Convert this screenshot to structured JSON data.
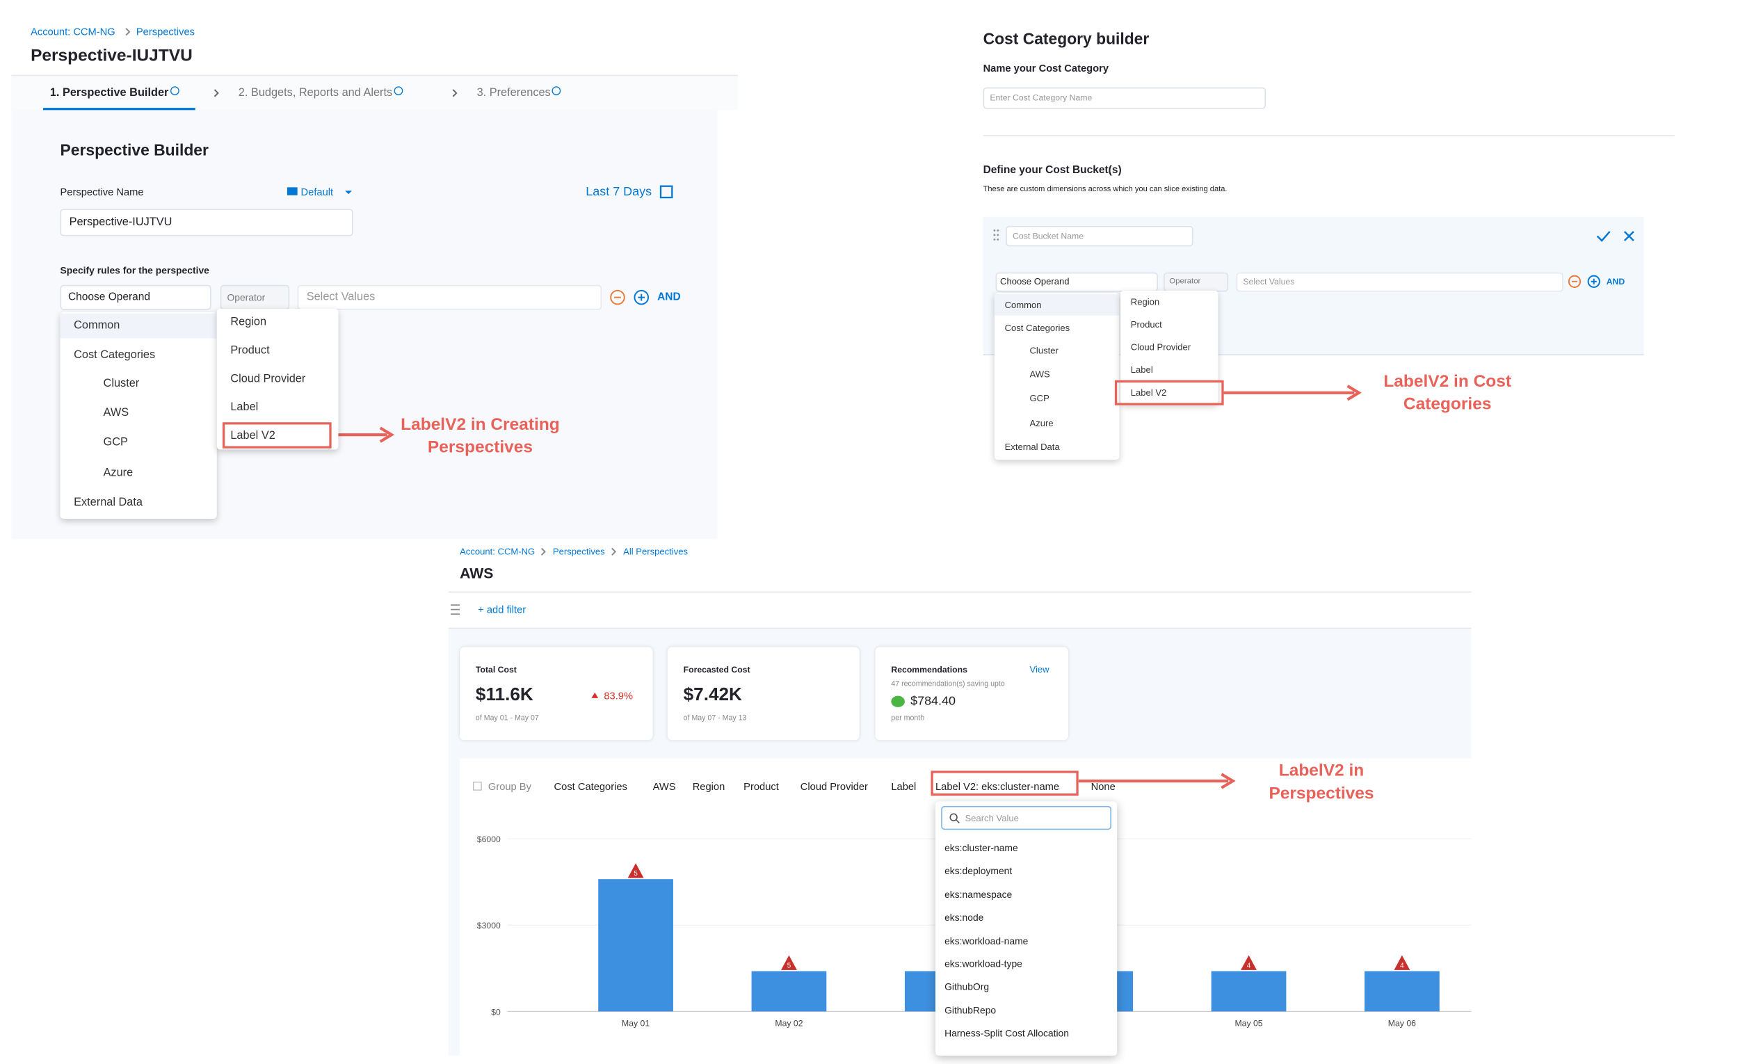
{
  "perspective_builder": {
    "breadcrumb": [
      "Account: CCM-NG",
      "Perspectives"
    ],
    "title": "Perspective-IUJTVU",
    "steps": [
      "1. Perspective Builder",
      "2. Budgets, Reports and Alerts",
      "3. Preferences"
    ],
    "heading": "Perspective Builder",
    "name_label": "Perspective Name",
    "folder": "Default",
    "time_range": "Last 7 Days",
    "name_value": "Perspective-IUJTVU",
    "rules_label": "Specify rules for the perspective",
    "operand": "Choose Operand",
    "operator": "Operator",
    "values_placeholder": "Select Values",
    "and": "AND",
    "menu": [
      "Common",
      "Cost Categories",
      "Cluster",
      "AWS",
      "GCP",
      "Azure",
      "External Data"
    ],
    "submenu": [
      "Region",
      "Product",
      "Cloud Provider",
      "Label",
      "Label V2"
    ],
    "annotation": [
      "LabelV2 in Creating",
      "Perspectives"
    ]
  },
  "cost_category_builder": {
    "title": "Cost Category builder",
    "name_label": "Name your Cost Category",
    "name_placeholder": "Enter Cost Category Name",
    "buckets_heading": "Define your Cost Bucket(s)",
    "buckets_description": "These are custom dimensions across which you can slice existing data.",
    "bucket_placeholder": "Cost Bucket Name",
    "operand": "Choose Operand",
    "operator": "Operator",
    "values_placeholder": "Select Values",
    "and": "AND",
    "menu": [
      "Common",
      "Cost Categories",
      "Cluster",
      "AWS",
      "GCP",
      "Azure",
      "External Data"
    ],
    "submenu": [
      "Region",
      "Product",
      "Cloud Provider",
      "Label",
      "Label V2"
    ],
    "annotation": [
      "LabelV2 in Cost",
      "Categories"
    ]
  },
  "perspective_view": {
    "breadcrumb": [
      "Account: CCM-NG",
      "Perspectives",
      "All Perspectives"
    ],
    "title": "AWS",
    "add_filter": "+ add filter",
    "total_cost": {
      "label": "Total Cost",
      "value": "$11.6K",
      "change": "83.9%",
      "period": "of May 01 - May 07"
    },
    "forecasted_cost": {
      "label": "Forecasted Cost",
      "value": "$7.42K",
      "period": "of May 07 - May 13"
    },
    "recommendations": {
      "label": "Recommendations",
      "link": "View",
      "description": "47 recommendation(s) saving upto",
      "value": "$784.40",
      "period": "per month"
    },
    "group_by": {
      "label": "Group By",
      "options": [
        "Cost Categories",
        "AWS",
        "Region",
        "Product",
        "Cloud Provider",
        "Label",
        "Label V2: eks:cluster-name",
        "None"
      ]
    },
    "dropdown": {
      "search_placeholder": "Search Value",
      "items": [
        "eks:cluster-name",
        "eks:deployment",
        "eks:namespace",
        "eks:node",
        "eks:workload-name",
        "eks:workload-type",
        "GithubOrg",
        "GithubRepo",
        "Harness-Split Cost Allocation"
      ]
    },
    "annotation": [
      "LabelV2 in",
      "Perspectives"
    ],
    "chart": {
      "type": "bar",
      "categories": [
        "May 01",
        "May 02",
        null,
        null,
        "May 05",
        "May 06"
      ],
      "values": [
        4600,
        1400,
        1400,
        1400,
        1400,
        1400
      ],
      "anomaly_counts": [
        5,
        5,
        null,
        null,
        4,
        4
      ],
      "color": "#3d8fdf",
      "ylim": [
        0,
        6000
      ],
      "yticks": [
        {
          "value": 0,
          "label": "$0"
        },
        {
          "value": 3000,
          "label": "$3000"
        },
        {
          "value": 6000,
          "label": "$6000"
        }
      ]
    }
  }
}
